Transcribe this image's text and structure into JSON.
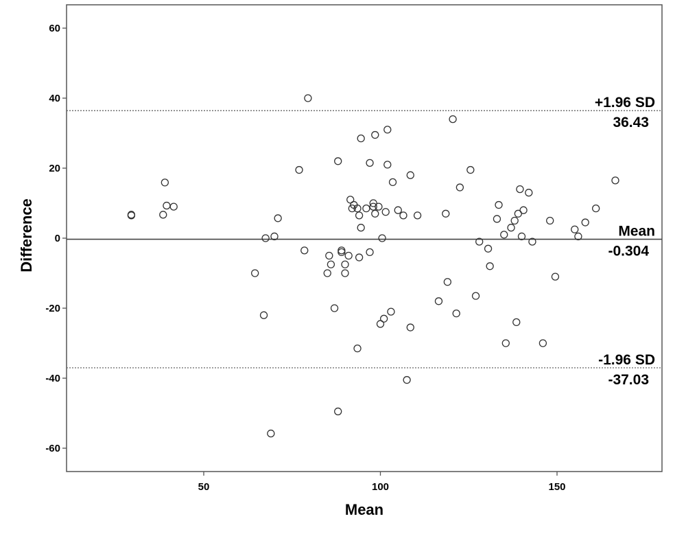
{
  "chart_data": {
    "type": "scatter",
    "title": "",
    "xlabel": "Mean",
    "ylabel": "Difference",
    "xlim": [
      18,
      185
    ],
    "ylim": [
      -66,
      66
    ],
    "x_ticks": [
      50,
      100,
      150
    ],
    "y_ticks": [
      60,
      40,
      20,
      0,
      -20,
      -40,
      -60
    ],
    "x_tick_labels": [
      "50",
      "100",
      "150"
    ],
    "y_tick_labels": [
      "60",
      "40",
      "20",
      "0",
      "-20",
      "-40",
      "-60"
    ],
    "grid": false,
    "marker": "open-circle",
    "reference_lines": [
      {
        "id": "upper",
        "value": 36.43,
        "style": "dotted",
        "label_top": "+1.96 SD",
        "label_bottom": "36.43"
      },
      {
        "id": "mean",
        "value": -0.304,
        "style": "solid",
        "label_top": "Mean",
        "label_bottom": "-0.304"
      },
      {
        "id": "lower",
        "value": -37.03,
        "style": "dotted",
        "label_top": "-1.96 SD",
        "label_bottom": "-37.03"
      }
    ],
    "points": [
      [
        29.5,
        6.7
      ],
      [
        29.5,
        6.5
      ],
      [
        38.5,
        6.7
      ],
      [
        39,
        15.9
      ],
      [
        39.5,
        9.3
      ],
      [
        41.5,
        9.0
      ],
      [
        64.5,
        -10
      ],
      [
        67,
        -22
      ],
      [
        67.5,
        0
      ],
      [
        69,
        -55.8
      ],
      [
        70,
        0.5
      ],
      [
        71,
        5.7
      ],
      [
        77,
        19.5
      ],
      [
        78.5,
        -3.5
      ],
      [
        79.5,
        40
      ],
      [
        85,
        -10
      ],
      [
        85.5,
        -5
      ],
      [
        86,
        -7.5
      ],
      [
        87,
        -20
      ],
      [
        88,
        22
      ],
      [
        88,
        -49.5
      ],
      [
        89,
        -3.5
      ],
      [
        89,
        -4
      ],
      [
        90,
        -10
      ],
      [
        90,
        -7.5
      ],
      [
        91,
        -5
      ],
      [
        91.5,
        11
      ],
      [
        92,
        8.5
      ],
      [
        92.5,
        9.5
      ],
      [
        93.5,
        -31.5
      ],
      [
        93.5,
        8.5
      ],
      [
        94,
        6.5
      ],
      [
        94,
        -5.5
      ],
      [
        94.5,
        28.5
      ],
      [
        94.5,
        3
      ],
      [
        96,
        8.5
      ],
      [
        97,
        21.5
      ],
      [
        97,
        -4
      ],
      [
        98,
        9
      ],
      [
        98,
        10
      ],
      [
        98.5,
        29.5
      ],
      [
        98.5,
        7
      ],
      [
        99.5,
        9
      ],
      [
        100,
        -24.5
      ],
      [
        100.5,
        0
      ],
      [
        101,
        -23
      ],
      [
        101.5,
        7.5
      ],
      [
        102,
        31
      ],
      [
        102,
        21
      ],
      [
        103,
        -21
      ],
      [
        103.5,
        16
      ],
      [
        105,
        8
      ],
      [
        106.5,
        6.5
      ],
      [
        107.5,
        -40.5
      ],
      [
        108.5,
        -25.5
      ],
      [
        108.5,
        18
      ],
      [
        110.5,
        6.5
      ],
      [
        116.5,
        -18
      ],
      [
        118.5,
        7
      ],
      [
        119,
        -12.5
      ],
      [
        120.5,
        34
      ],
      [
        121.5,
        -21.5
      ],
      [
        122.5,
        14.5
      ],
      [
        125.5,
        19.5
      ],
      [
        127,
        -16.5
      ],
      [
        128,
        -1
      ],
      [
        130.5,
        -3
      ],
      [
        131,
        -8
      ],
      [
        133,
        5.5
      ],
      [
        133.5,
        9.5
      ],
      [
        135,
        1
      ],
      [
        135.5,
        -30
      ],
      [
        137,
        3
      ],
      [
        138,
        5
      ],
      [
        138.5,
        -24
      ],
      [
        139,
        7
      ],
      [
        139.5,
        14
      ],
      [
        140,
        0.5
      ],
      [
        140.5,
        8
      ],
      [
        142,
        13
      ],
      [
        143,
        -1
      ],
      [
        146,
        -30
      ],
      [
        148,
        5
      ],
      [
        149.5,
        -11
      ],
      [
        155,
        2.5
      ],
      [
        156,
        0.5
      ],
      [
        158,
        4.5
      ],
      [
        161,
        8.5
      ],
      [
        166.5,
        16.5
      ]
    ]
  }
}
